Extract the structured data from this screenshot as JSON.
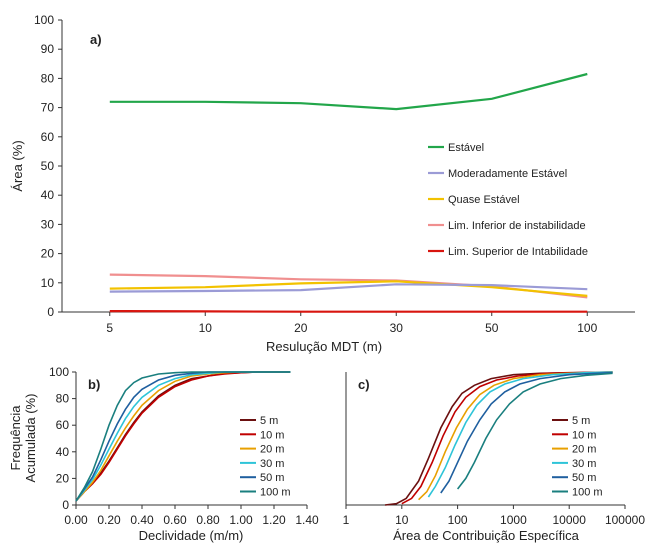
{
  "chart_data": [
    {
      "panel_label": "a)",
      "type": "line",
      "categories": [
        "5",
        "10",
        "20",
        "30",
        "50",
        "100"
      ],
      "xlabel": "Resulução MDT (m)",
      "ylabel": "Área (%)",
      "ylim": [
        0,
        100
      ],
      "yticks": [
        "0",
        "10",
        "20",
        "30",
        "40",
        "50",
        "60",
        "70",
        "80",
        "90",
        "100"
      ],
      "legend_position": "right",
      "series": [
        {
          "name": "Estável",
          "color": "#22a64a",
          "values": [
            72.0,
            72.0,
            71.5,
            69.5,
            73.0,
            81.5
          ]
        },
        {
          "name": "Moderadamente Estável",
          "color": "#9b9bd6",
          "values": [
            7.0,
            7.2,
            7.5,
            9.5,
            9.2,
            7.8
          ]
        },
        {
          "name": "Quase Estável",
          "color": "#f2c200",
          "values": [
            8.0,
            8.5,
            9.8,
            10.5,
            8.5,
            5.5
          ]
        },
        {
          "name": "Lim. Inferior de instabilidade",
          "color": "#f08f8f",
          "values": [
            12.8,
            12.3,
            11.2,
            10.8,
            8.8,
            5.0
          ]
        },
        {
          "name": "Lim. Superior de Intabilidade",
          "color": "#d8150f",
          "values": [
            0.3,
            0.2,
            0.1,
            0.1,
            0.1,
            0.1
          ]
        }
      ]
    },
    {
      "panel_label": "b)",
      "type": "line",
      "xlabel": "Declividade (m/m)",
      "ylabel": "Frequência\nAcumulada  (%)",
      "ylabel_lines": [
        "Frequência",
        "Acumulada  (%)"
      ],
      "xlim": [
        0,
        1.4
      ],
      "ylim": [
        0,
        100
      ],
      "xticks": [
        "0.00",
        "0.20",
        "0.40",
        "0.60",
        "0.80",
        "1.00",
        "1.20",
        "1.40"
      ],
      "yticks": [
        "0",
        "20",
        "40",
        "60",
        "80",
        "100"
      ],
      "legend_position": "right",
      "series": [
        {
          "name": "5 m",
          "color": "#6b1010",
          "x": [
            0,
            0.05,
            0.1,
            0.15,
            0.2,
            0.25,
            0.3,
            0.35,
            0.4,
            0.5,
            0.6,
            0.7,
            0.8,
            0.9,
            1.0,
            1.1,
            1.2,
            1.3
          ],
          "y": [
            3,
            10,
            16,
            24,
            33,
            43,
            53,
            62,
            70,
            82,
            90,
            95,
            97,
            99,
            99.5,
            100,
            100,
            100
          ]
        },
        {
          "name": "10 m",
          "color": "#c00000",
          "x": [
            0,
            0.05,
            0.1,
            0.15,
            0.2,
            0.25,
            0.3,
            0.35,
            0.4,
            0.5,
            0.6,
            0.7,
            0.8,
            0.9,
            1.0,
            1.1,
            1.2,
            1.3
          ],
          "y": [
            3,
            10,
            16,
            23,
            32,
            42,
            52,
            61,
            69,
            81,
            89,
            94,
            97,
            98.5,
            99.5,
            100,
            100,
            100
          ]
        },
        {
          "name": "20 m",
          "color": "#e8a000",
          "x": [
            0,
            0.05,
            0.1,
            0.15,
            0.2,
            0.25,
            0.3,
            0.35,
            0.4,
            0.5,
            0.6,
            0.7,
            0.8,
            0.9,
            1.0,
            1.1,
            1.2,
            1.3
          ],
          "y": [
            3,
            10,
            17,
            26,
            37,
            48,
            58,
            67,
            75,
            86,
            93,
            97,
            98.5,
            99.5,
            100,
            100,
            100,
            100
          ]
        },
        {
          "name": "30 m",
          "color": "#2ec4d8",
          "x": [
            0,
            0.05,
            0.1,
            0.15,
            0.2,
            0.25,
            0.3,
            0.35,
            0.4,
            0.5,
            0.6,
            0.7,
            0.8,
            0.9,
            1.0,
            1.1,
            1.2,
            1.3
          ],
          "y": [
            3,
            11,
            19,
            30,
            42,
            54,
            65,
            74,
            81,
            90,
            95,
            98,
            99,
            100,
            100,
            100,
            100,
            100
          ]
        },
        {
          "name": "50 m",
          "color": "#1f5f9f",
          "x": [
            0,
            0.05,
            0.1,
            0.15,
            0.2,
            0.25,
            0.3,
            0.35,
            0.4,
            0.5,
            0.6,
            0.7,
            0.8,
            0.9,
            1.0,
            1.1,
            1.2,
            1.3
          ],
          "y": [
            3,
            12,
            21,
            34,
            48,
            61,
            72,
            81,
            87,
            94,
            97.5,
            99,
            100,
            100,
            100,
            100,
            100,
            100
          ]
        },
        {
          "name": "100 m",
          "color": "#1a7f7f",
          "x": [
            0,
            0.05,
            0.1,
            0.15,
            0.2,
            0.25,
            0.3,
            0.35,
            0.4,
            0.5,
            0.6,
            0.7,
            0.8,
            0.9,
            1.0,
            1.1,
            1.2,
            1.3
          ],
          "y": [
            3,
            13,
            25,
            42,
            60,
            75,
            86,
            92,
            95.5,
            98.5,
            99.5,
            100,
            100,
            100,
            100,
            100,
            100,
            100
          ]
        }
      ]
    },
    {
      "panel_label": "c)",
      "type": "line",
      "xscale": "log",
      "xlabel": "Área de Contribuição Específica",
      "ylabel": "",
      "xlim": [
        1,
        100000
      ],
      "ylim": [
        0,
        100
      ],
      "xticks": [
        "1",
        "10",
        "100",
        "1000",
        "10000",
        "100000"
      ],
      "yticks": [],
      "legend_position": "right",
      "series": [
        {
          "name": "5 m",
          "color": "#6b1010",
          "x": [
            5,
            8,
            12,
            20,
            30,
            50,
            80,
            120,
            200,
            400,
            1000,
            3000,
            10000,
            60000
          ],
          "y": [
            0,
            1,
            5,
            18,
            35,
            58,
            74,
            84,
            90,
            95,
            98,
            99,
            99.5,
            100
          ]
        },
        {
          "name": "10 m",
          "color": "#c00000",
          "x": [
            10,
            15,
            22,
            35,
            55,
            90,
            140,
            250,
            500,
            1200,
            4000,
            15000,
            60000
          ],
          "y": [
            1,
            5,
            14,
            32,
            52,
            70,
            81,
            89,
            94,
            97,
            99,
            99.5,
            100
          ]
        },
        {
          "name": "20 m",
          "color": "#e8a000",
          "x": [
            20,
            28,
            40,
            60,
            95,
            150,
            250,
            450,
            1000,
            3000,
            10000,
            60000
          ],
          "y": [
            4,
            10,
            22,
            40,
            58,
            72,
            83,
            90,
            95,
            98,
            99,
            100
          ]
        },
        {
          "name": "30 m",
          "color": "#2ec4d8",
          "x": [
            30,
            40,
            60,
            90,
            140,
            220,
            380,
            700,
            1500,
            5000,
            20000,
            60000
          ],
          "y": [
            6,
            14,
            28,
            45,
            62,
            75,
            85,
            91,
            95,
            98,
            99.5,
            100
          ]
        },
        {
          "name": "50 m",
          "color": "#1f5f9f",
          "x": [
            50,
            70,
            100,
            150,
            250,
            400,
            700,
            1300,
            3000,
            10000,
            30000,
            60000
          ],
          "y": [
            9,
            18,
            32,
            48,
            64,
            76,
            85,
            91,
            95,
            98,
            99,
            99.5
          ]
        },
        {
          "name": "100 m",
          "color": "#1a7f7f",
          "x": [
            100,
            140,
            200,
            320,
            500,
            850,
            1500,
            3000,
            7000,
            20000,
            60000
          ],
          "y": [
            12,
            20,
            32,
            50,
            64,
            76,
            85,
            91,
            95,
            97.5,
            99
          ]
        }
      ]
    }
  ]
}
